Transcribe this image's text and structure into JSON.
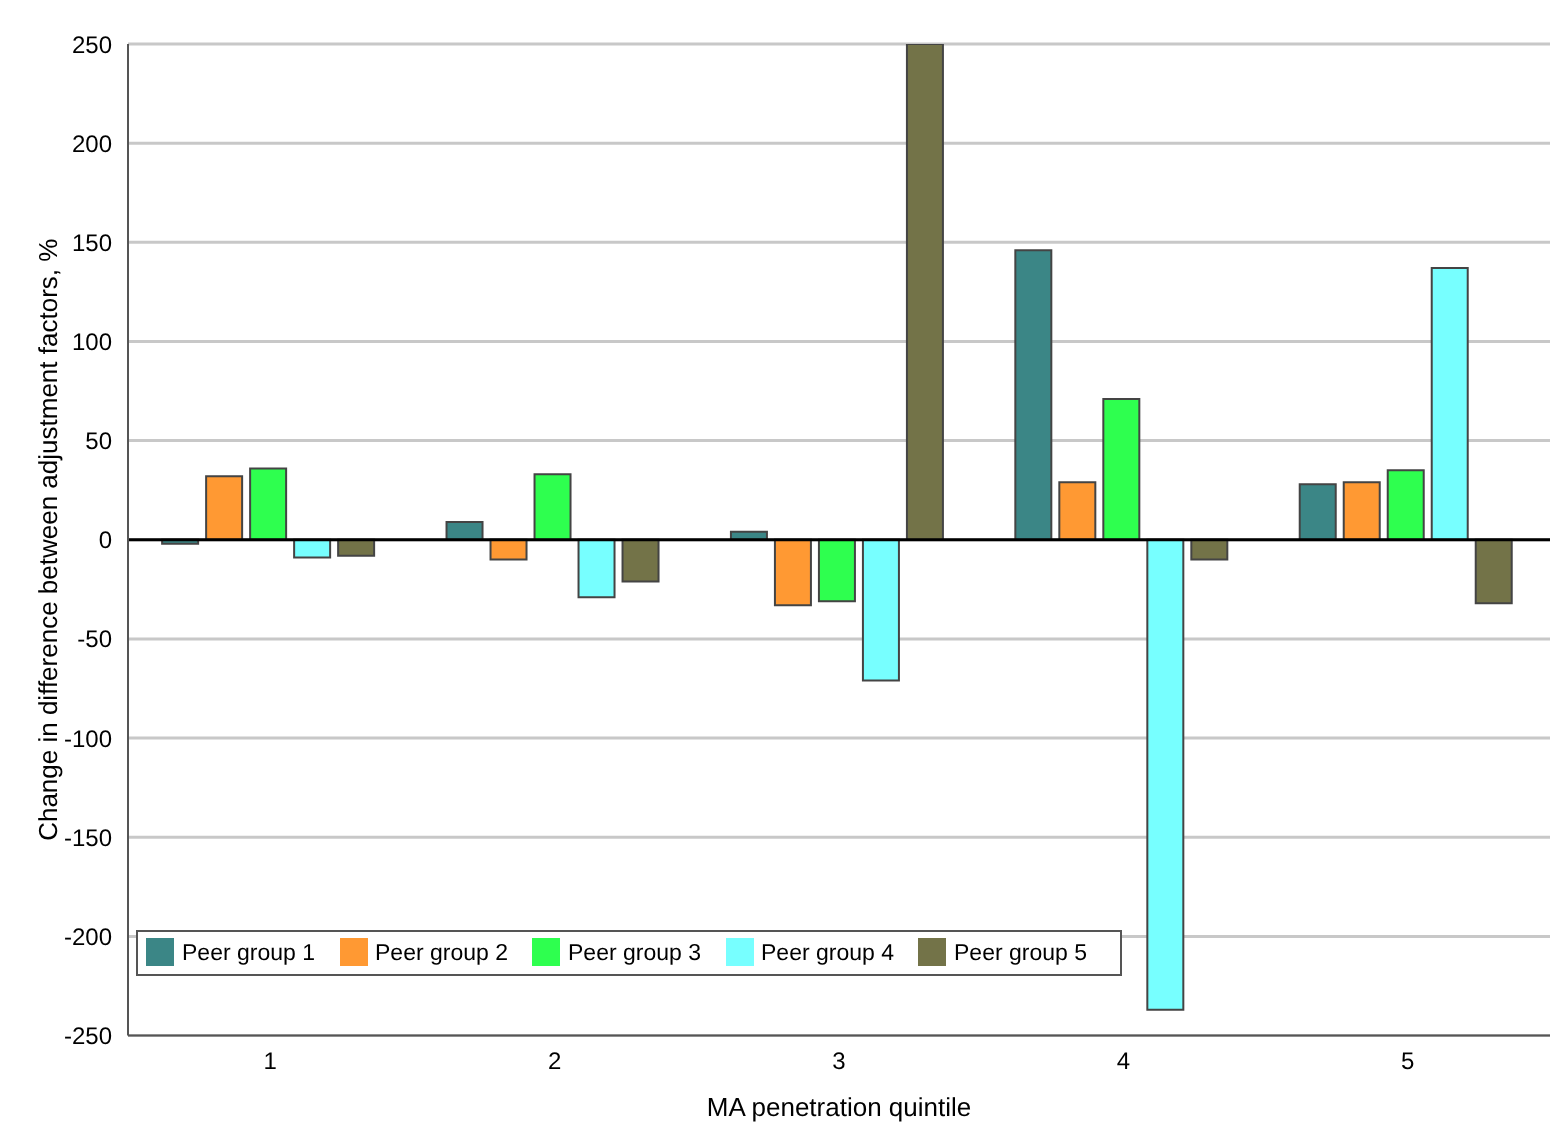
{
  "chart_data": {
    "type": "bar",
    "xlabel": "MA penetration quintile",
    "ylabel": "Change in difference between adjustment factors, %",
    "categories": [
      "1",
      "2",
      "3",
      "4",
      "5"
    ],
    "series": [
      {
        "name": "Peer group 1",
        "color": "#3b8686",
        "values": [
          -2,
          9,
          4,
          146,
          28
        ]
      },
      {
        "name": "Peer group 2",
        "color": "#ff9933",
        "values": [
          32,
          -10,
          -33,
          29,
          29
        ]
      },
      {
        "name": "Peer group 3",
        "color": "#2eff4f",
        "values": [
          36,
          33,
          -31,
          71,
          35
        ]
      },
      {
        "name": "Peer group 4",
        "color": "#77ffff",
        "values": [
          -9,
          -29,
          -71,
          -237,
          137
        ]
      },
      {
        "name": "Peer group 5",
        "color": "#737348",
        "values": [
          -8,
          -21,
          250,
          -10,
          -32
        ]
      }
    ],
    "ylim": [
      -250,
      250
    ],
    "yticks": [
      -250,
      -200,
      -150,
      -100,
      -50,
      0,
      50,
      100,
      150,
      200,
      250
    ],
    "grid": "y",
    "legend": "bottom left",
    "ref_lines": [
      {
        "axis": "y",
        "value": 0,
        "color": "#000000"
      }
    ]
  }
}
